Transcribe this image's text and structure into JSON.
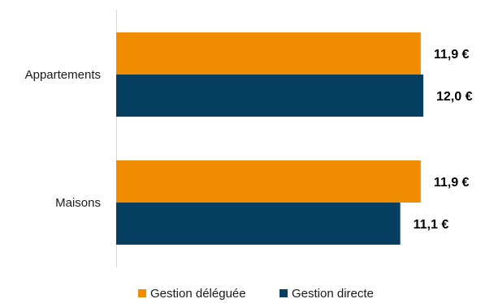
{
  "chart_data": {
    "type": "bar",
    "orientation": "horizontal",
    "categories": [
      "Appartements",
      "Maisons"
    ],
    "series": [
      {
        "name": "Gestion déléguée",
        "color": "#f08c00",
        "values": [
          11.9,
          11.9
        ],
        "labels": [
          "11,9 €",
          "11,9 €"
        ]
      },
      {
        "name": "Gestion directe",
        "color": "#063f62",
        "values": [
          12.0,
          11.1
        ],
        "labels": [
          "12,0 €",
          "11,1 €"
        ]
      }
    ],
    "legend_position": "bottom",
    "grid": false
  }
}
